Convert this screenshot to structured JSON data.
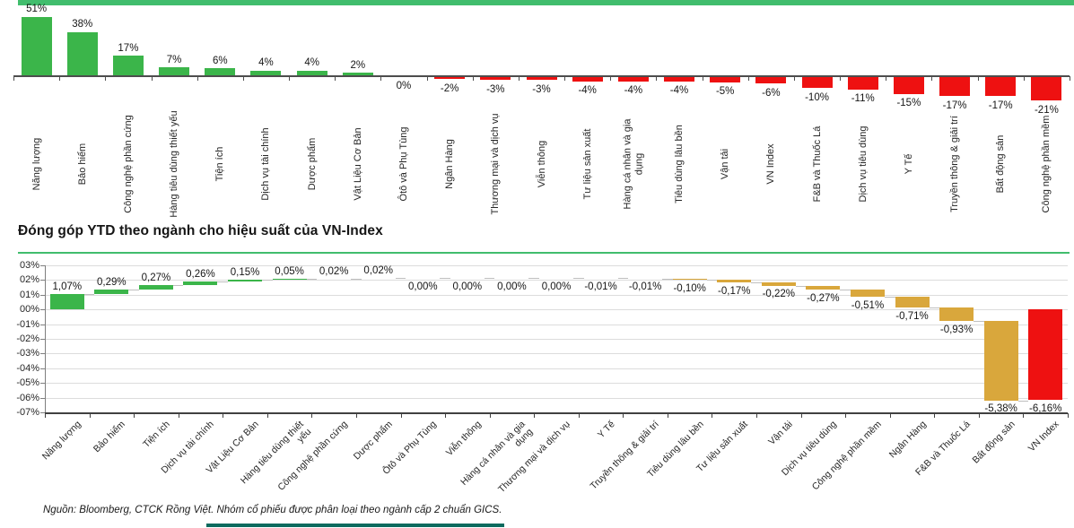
{
  "accents": {
    "top_band_color": "#41BD6D",
    "title_underline_color": "#41BD6D",
    "bottom_line_color": "#0C6A5E"
  },
  "source_note": "Nguồn: Bloomberg, CTCK Rồng Việt. Nhóm cổ phiếu được phân loại theo ngành cấp 2 chuẩn GICS.",
  "chart_data": [
    {
      "type": "bar",
      "title": "",
      "categories": [
        "Năng lượng",
        "Bảo hiểm",
        "Công nghệ phần cứng",
        "Hàng tiêu dùng thiết yếu",
        "Tiện ích",
        "Dịch vụ tài chính",
        "Dược phẩm",
        "Vật Liệu Cơ Bản",
        "Ôtô và Phụ Tùng",
        "Ngân Hàng",
        "Thương mại và dịch vụ",
        "Viễn thông",
        "Tư liệu sản xuất",
        "Hàng cá nhân và gia dụng",
        "Tiêu dùng lâu bền",
        "Vận tải",
        "VN Index",
        "F&B và Thuốc Lá",
        "Dịch vụ tiêu dùng",
        "Y Tế",
        "Truyền thông & giải trí",
        "Bất động sản",
        "Công nghệ phần mềm"
      ],
      "values": [
        51,
        38,
        17,
        7,
        6,
        4,
        4,
        2,
        0,
        -2,
        -3,
        -3,
        -4,
        -4,
        -4,
        -5,
        -6,
        -10,
        -11,
        -15,
        -17,
        -17,
        -21
      ],
      "labels": [
        "51%",
        "38%",
        "17%",
        "7%",
        "6%",
        "4%",
        "4%",
        "2%",
        "0%",
        "-2%",
        "-3%",
        "-3%",
        "-4%",
        "-4%",
        "-4%",
        "-5%",
        "-6%",
        "-10%",
        "-11%",
        "-15%",
        "-17%",
        "-17%",
        "-21%"
      ],
      "positive_color": "#3BB54A",
      "negative_color": "#EE1111",
      "ylim": [
        -21,
        51
      ],
      "grid": false,
      "legend": "none"
    },
    {
      "type": "bar",
      "subtype": "waterfall",
      "title": "Đóng góp YTD theo ngành cho hiệu suất của VN-Index",
      "categories": [
        "Năng lượng",
        "Bảo hiểm",
        "Tiện ích",
        "Dịch vụ tài chính",
        "Vật Liệu Cơ Bản",
        "Hàng tiêu dùng thiết yếu",
        "Công nghệ phần cứng",
        "Dược phẩm",
        "Ôtô và Phụ Tùng",
        "Viễn thông",
        "Hàng cá nhân và gia dụng",
        "Thương mại và dịch vụ",
        "Y Tế",
        "Truyền thông & giải trí",
        "Tiêu dùng lâu bền",
        "Tư liệu sản xuất",
        "Vận tải",
        "Dịch vụ tiêu dùng",
        "Công nghệ phần mềm",
        "Ngân Hàng",
        "F&B và Thuốc Lá",
        "Bất động sản",
        "VN Index"
      ],
      "values": [
        1.07,
        0.29,
        0.27,
        0.26,
        0.15,
        0.05,
        0.02,
        0.02,
        0.0,
        0.0,
        0.0,
        0.0,
        -0.01,
        -0.01,
        -0.1,
        -0.17,
        -0.22,
        -0.27,
        -0.51,
        -0.71,
        -0.93,
        -5.38,
        -6.16
      ],
      "labels": [
        "1,07%",
        "0,29%",
        "0,27%",
        "0,26%",
        "0,15%",
        "0,05%",
        "0,02%",
        "0,02%",
        "0,00%",
        "0,00%",
        "0,00%",
        "0,00%",
        "-0,01%",
        "-0,01%",
        "-0,10%",
        "-0,17%",
        "-0,22%",
        "-0,27%",
        "-0,51%",
        "-0,71%",
        "-0,93%",
        "-5,38%",
        "-6,16%"
      ],
      "last_is_total": true,
      "positive_color": "#3BB54A",
      "negative_color": "#D9A73C",
      "total_color": "#EE1111",
      "ylim": [
        -7,
        3
      ],
      "ytick_labels": [
        "03%",
        "02%",
        "01%",
        "00%",
        "-01%",
        "-02%",
        "-03%",
        "-04%",
        "-05%",
        "-06%",
        "-07%"
      ],
      "grid": true,
      "legend": "none"
    }
  ]
}
